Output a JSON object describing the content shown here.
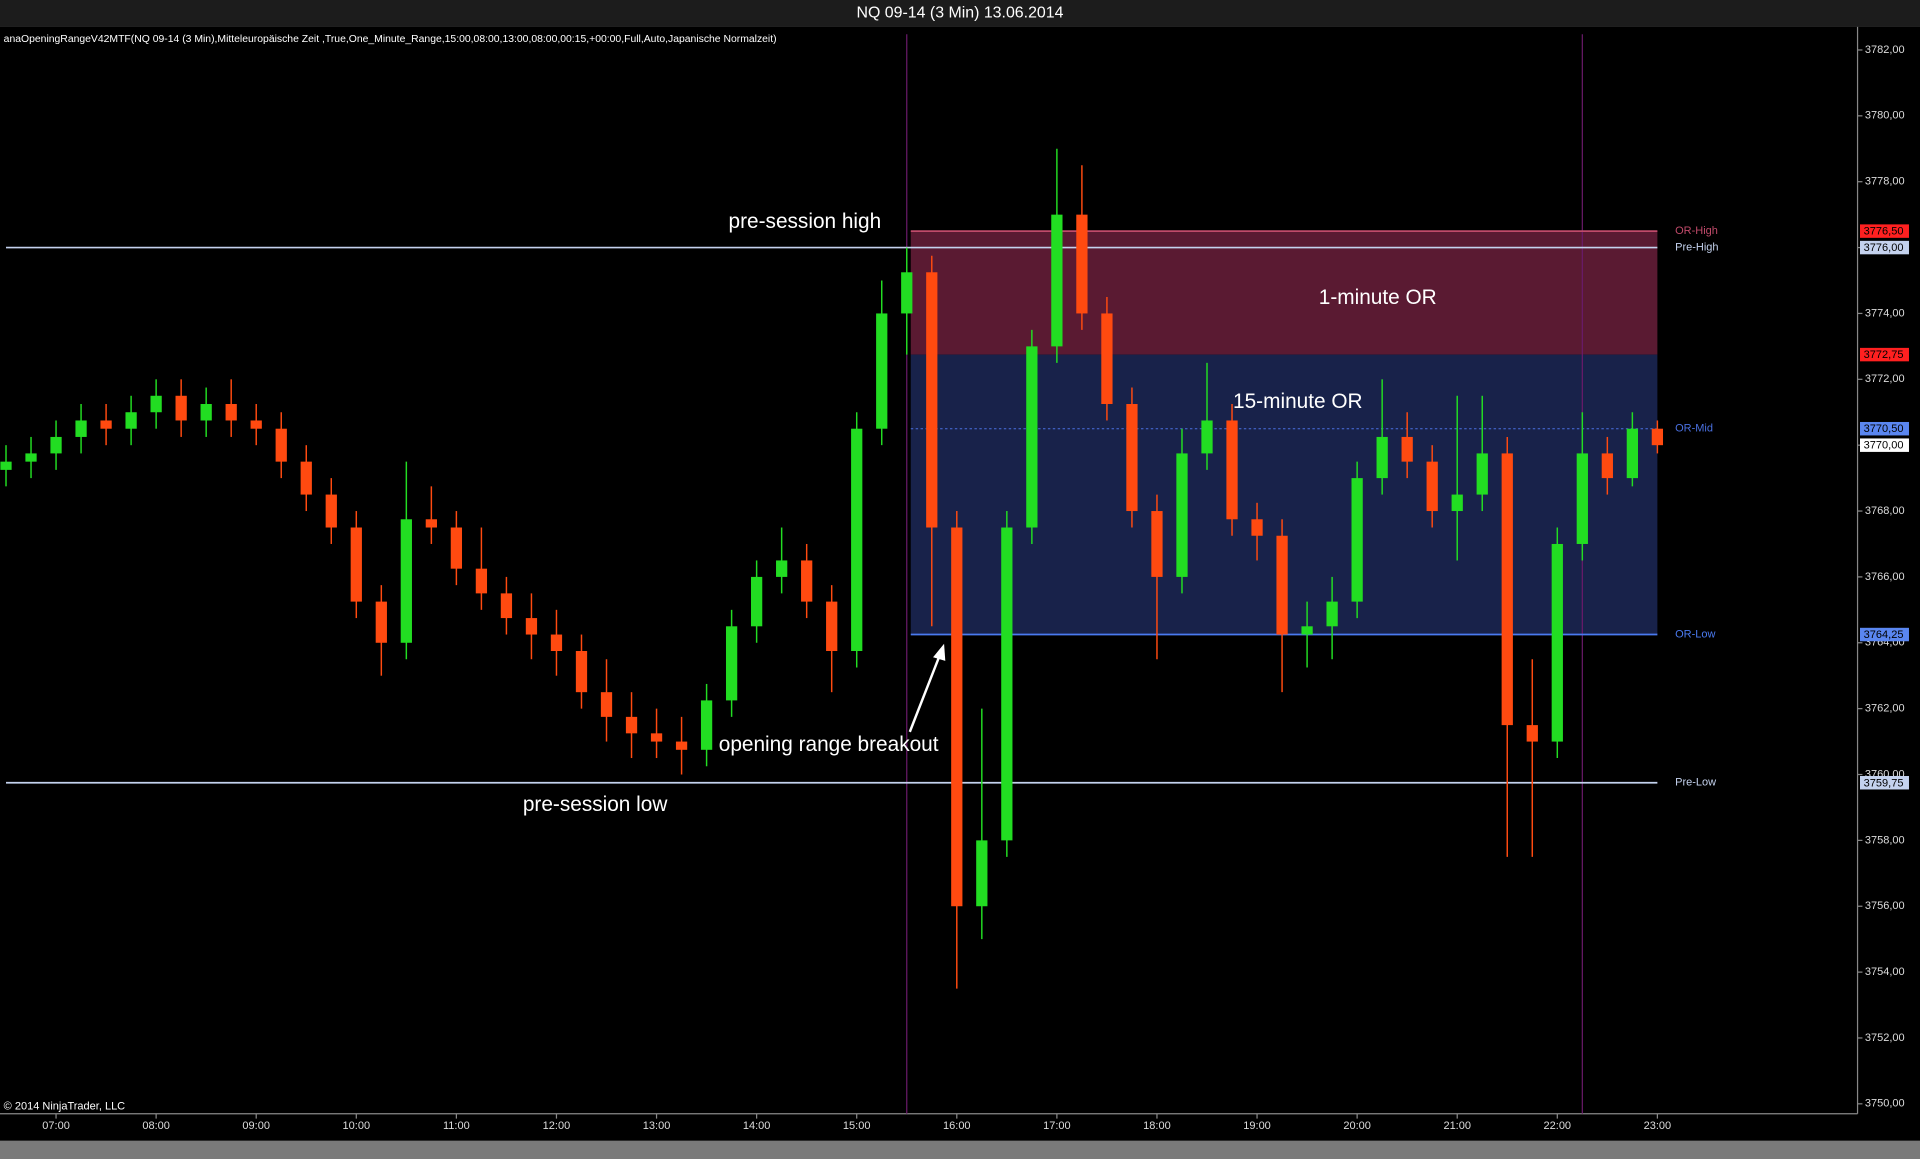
{
  "chart_data": {
    "type": "candlestick",
    "title": "NQ 09-14 (3 Min)  13.06.2014",
    "indicator_label": "anaOpeningRangeV42MTF(NQ 09-14 (3 Min),Mitteleuropäische Zeit ,True,One_Minute_Range,15:00,08:00,13:00,08:00,00:15,+00:00,Full,Auto,Japanische Normalzeit)",
    "copyright": "© 2014 NinjaTrader, LLC",
    "x": [
      6.5,
      6.75,
      7,
      7.25,
      7.5,
      7.75,
      8,
      8.25,
      8.5,
      8.75,
      9,
      9.25,
      9.5,
      9.75,
      10,
      10.25,
      10.5,
      10.75,
      11,
      11.25,
      11.5,
      11.75,
      12,
      12.25,
      12.5,
      12.75,
      13,
      13.25,
      13.5,
      13.75,
      14,
      14.25,
      14.5,
      14.75,
      15,
      15.25,
      15.5,
      15.75,
      16,
      16.25,
      16.5,
      16.75,
      17,
      17.25,
      17.5,
      17.75,
      18,
      18.25,
      18.5,
      18.75,
      19,
      19.25,
      19.5,
      19.75,
      20,
      20.25,
      20.5,
      20.75,
      21,
      21.25,
      21.5,
      21.75,
      22,
      22.25,
      22.5,
      22.75,
      23
    ],
    "open": [
      3769.25,
      3769.5,
      3769.75,
      3770.25,
      3770.75,
      3770.5,
      3771,
      3771.5,
      3770.75,
      3771.25,
      3770.75,
      3770.5,
      3769.5,
      3768.5,
      3767.5,
      3765.25,
      3764,
      3767.75,
      3767.5,
      3766.25,
      3765.5,
      3764.75,
      3764.25,
      3763.75,
      3762.5,
      3761.75,
      3761.25,
      3761,
      3760.75,
      3762.25,
      3764.5,
      3766,
      3766.5,
      3765.25,
      3763.75,
      3770.5,
      3774,
      3775.25,
      3767.5,
      3756,
      3758,
      3767.5,
      3773,
      3777,
      3774,
      3771.25,
      3768,
      3766,
      3769.75,
      3770.75,
      3767.75,
      3767.25,
      3764.25,
      3764.5,
      3765.25,
      3769,
      3770.25,
      3769.5,
      3768,
      3768.5,
      3769.75,
      3761.5,
      3761,
      3767,
      3769.75,
      3769,
      3770.5
    ],
    "high": [
      3770,
      3770.25,
      3770.75,
      3771.25,
      3771.25,
      3771.5,
      3772,
      3772,
      3771.75,
      3772,
      3771.25,
      3771,
      3770,
      3769,
      3768,
      3765.75,
      3769.5,
      3768.75,
      3768,
      3767.5,
      3766,
      3765.5,
      3765,
      3764.25,
      3763.5,
      3762.5,
      3762,
      3761.75,
      3762.75,
      3765,
      3766.5,
      3767.5,
      3767,
      3765.75,
      3771,
      3775,
      3776,
      3775.75,
      3768,
      3762,
      3768,
      3773.5,
      3779,
      3778.5,
      3774.5,
      3771.75,
      3768.5,
      3770.5,
      3772.5,
      3771.25,
      3768.25,
      3767.75,
      3765.25,
      3766,
      3769.5,
      3772,
      3771,
      3770,
      3771.5,
      3771.5,
      3770.25,
      3763.5,
      3767.5,
      3771,
      3770.25,
      3771,
      3770.75
    ],
    "low": [
      3768.75,
      3769,
      3769.25,
      3769.75,
      3770,
      3770,
      3770.5,
      3770.25,
      3770.25,
      3770.25,
      3770,
      3769,
      3768,
      3767,
      3764.75,
      3763,
      3763.5,
      3767,
      3765.75,
      3765,
      3764.25,
      3763.5,
      3763,
      3762,
      3761,
      3760.5,
      3760.5,
      3760,
      3760.25,
      3761.75,
      3764,
      3765.5,
      3764.75,
      3762.5,
      3763.25,
      3770,
      3772.75,
      3764.5,
      3753.5,
      3755,
      3757.5,
      3767,
      3772.5,
      3773.5,
      3770.75,
      3767.5,
      3763.5,
      3765.5,
      3769.25,
      3767.25,
      3766.5,
      3762.5,
      3763.25,
      3763.5,
      3764.75,
      3768.5,
      3769,
      3767.5,
      3766.5,
      3768,
      3757.5,
      3757.5,
      3760.5,
      3766.5,
      3768.5,
      3768.75,
      3769.75
    ],
    "close": [
      3769.5,
      3769.75,
      3770.25,
      3770.75,
      3770.5,
      3771,
      3771.5,
      3770.75,
      3771.25,
      3770.75,
      3770.5,
      3769.5,
      3768.5,
      3767.5,
      3765.25,
      3764,
      3767.75,
      3767.5,
      3766.25,
      3765.5,
      3764.75,
      3764.25,
      3763.75,
      3762.5,
      3761.75,
      3761.25,
      3761,
      3760.75,
      3762.25,
      3764.5,
      3766,
      3766.5,
      3765.25,
      3763.75,
      3770.5,
      3774,
      3775.25,
      3767.5,
      3756,
      3758,
      3767.5,
      3773,
      3777,
      3774,
      3771.25,
      3768,
      3766,
      3769.75,
      3770.75,
      3767.75,
      3767.25,
      3764.25,
      3764.5,
      3765.25,
      3769,
      3770.25,
      3769.5,
      3768,
      3768.5,
      3769.75,
      3761.5,
      3761,
      3767,
      3769.75,
      3769,
      3770.5,
      3770
    ],
    "up_color": "#22dd22",
    "down_color": "#ff4a10",
    "xlim": [
      6.44,
      25.0
    ],
    "xticks": [
      {
        "value": 7,
        "label": "07:00"
      },
      {
        "value": 8,
        "label": "08:00"
      },
      {
        "value": 9,
        "label": "09:00"
      },
      {
        "value": 10,
        "label": "10:00"
      },
      {
        "value": 11,
        "label": "11:00"
      },
      {
        "value": 12,
        "label": "12:00"
      },
      {
        "value": 13,
        "label": "13:00"
      },
      {
        "value": 14,
        "label": "14:00"
      },
      {
        "value": 15,
        "label": "15:00"
      },
      {
        "value": 16,
        "label": "16:00"
      },
      {
        "value": 17,
        "label": "17:00"
      },
      {
        "value": 18,
        "label": "18:00"
      },
      {
        "value": 19,
        "label": "19:00"
      },
      {
        "value": 20,
        "label": "20:00"
      },
      {
        "value": 21,
        "label": "21:00"
      },
      {
        "value": 22,
        "label": "22:00"
      },
      {
        "value": 23,
        "label": "23:00"
      }
    ],
    "ylim": [
      3749.7,
      3782.7
    ],
    "yticks": [
      {
        "value": 3750,
        "label": "3750,00"
      },
      {
        "value": 3752,
        "label": "3752,00"
      },
      {
        "value": 3754,
        "label": "3754,00"
      },
      {
        "value": 3756,
        "label": "3756,00"
      },
      {
        "value": 3758,
        "label": "3758,00"
      },
      {
        "value": 3760,
        "label": "3760,00"
      },
      {
        "value": 3762,
        "label": "3762,00"
      },
      {
        "value": 3764,
        "label": "3764,00"
      },
      {
        "value": 3766,
        "label": "3766,00"
      },
      {
        "value": 3768,
        "label": "3768,00"
      },
      {
        "value": 3770,
        "label": "3770,00"
      },
      {
        "value": 3772,
        "label": "3772,00"
      },
      {
        "value": 3774,
        "label": "3774,00"
      },
      {
        "value": 3776,
        "label": "3776,00"
      },
      {
        "value": 3778,
        "label": "3778,00"
      },
      {
        "value": 3780,
        "label": "3780,00"
      },
      {
        "value": 3782,
        "label": "3782,00"
      }
    ],
    "grid": false,
    "session_lines": [
      15.5,
      22.25
    ],
    "zones": [
      {
        "label": "1-minute OR",
        "from": 3772.75,
        "to": 3776.5,
        "x_range": [
          15.54,
          23.0
        ],
        "color": "#5a1a32"
      },
      {
        "label": "15-minute OR",
        "from": 3764.25,
        "to": 3772.75,
        "x_range": [
          15.54,
          23.0
        ],
        "color": "#18224a"
      }
    ],
    "levels": [
      {
        "name": "OR-High",
        "value": 3776.5,
        "x_range": [
          15.54,
          23.0
        ],
        "color": "#c04a6a",
        "dashed": false
      },
      {
        "name": "Pre-High",
        "value": 3776,
        "x_range": [
          6.5,
          23.0
        ],
        "color": "#c4d2ee",
        "dashed": false
      },
      {
        "name": "OR-Mid",
        "value": 3770.5,
        "x_range": [
          15.54,
          23.0
        ],
        "color": "#4a70e0",
        "dashed": true
      },
      {
        "name": "OR-Low",
        "value": 3764.25,
        "x_range": [
          15.54,
          23.0
        ],
        "color": "#4a7af0",
        "dashed": false
      },
      {
        "name": "Pre-Low",
        "value": 3759.75,
        "x_range": [
          6.5,
          23.0
        ],
        "color": "#c4d2ee",
        "dashed": false
      }
    ],
    "price_markers": [
      {
        "value": 3776.5,
        "label": "3776,50",
        "color": "#ff2020"
      },
      {
        "value": 3776,
        "label": "3776,00",
        "color": "#c4d2ee"
      },
      {
        "value": 3772.75,
        "label": "3772,75",
        "color": "#ff2020"
      },
      {
        "value": 3770.5,
        "label": "3770,50",
        "color": "#5a86f0"
      },
      {
        "value": 3770,
        "label": "3770,00",
        "color": "#ffffff"
      },
      {
        "value": 3764.25,
        "label": "3764,25",
        "color": "#5a86f0"
      },
      {
        "value": 3759.75,
        "label": "3759,75",
        "color": "#c4d2ee"
      }
    ],
    "annotations": [
      "pre-session high",
      "pre-session low",
      "opening range breakout"
    ]
  }
}
